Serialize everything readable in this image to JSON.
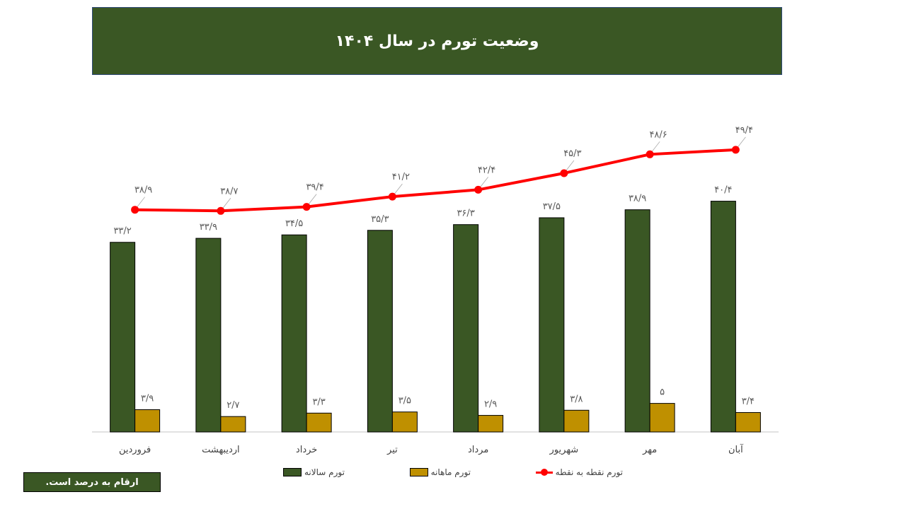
{
  "title": "وضعیت تورم در سال ۱۴۰۴",
  "note": "ارقام به درصد است.",
  "legend": {
    "annual": "تورم سالانه",
    "monthly": "تورم ماهانه",
    "point": "تورم نقطه به نقطه"
  },
  "colors": {
    "annual": "#3a5724",
    "monthly": "#bf9000",
    "point": "#ff0000",
    "banner": "#3a5724"
  },
  "chart_data": {
    "type": "bar",
    "title": "وضعیت تورم در سال ۱۴۰۴",
    "xlabel": "",
    "ylabel": "",
    "categories": [
      "فروردین",
      "اردیبهشت",
      "خرداد",
      "تیر",
      "مرداد",
      "شهریور",
      "مهر",
      "آبان"
    ],
    "series": [
      {
        "name": "تورم سالانه",
        "type": "bar",
        "values": [
          33.2,
          33.9,
          34.5,
          35.3,
          36.3,
          37.5,
          38.9,
          40.4
        ],
        "labels": [
          "۳۳/۲",
          "۳۳/۹",
          "۳۴/۵",
          "۳۵/۳",
          "۳۶/۳",
          "۳۷/۵",
          "۳۸/۹",
          "۴۰/۴"
        ]
      },
      {
        "name": "تورم ماهانه",
        "type": "bar",
        "values": [
          3.9,
          2.7,
          3.3,
          3.5,
          2.9,
          3.8,
          5,
          3.4
        ],
        "labels": [
          "۳/۹",
          "۲/۷",
          "۳/۳",
          "۳/۵",
          "۲/۹",
          "۳/۸",
          "۵",
          "۳/۴"
        ]
      },
      {
        "name": "تورم نقطه به نقطه",
        "type": "line",
        "values": [
          38.9,
          38.7,
          39.4,
          41.2,
          42.4,
          45.3,
          48.6,
          49.4
        ],
        "labels": [
          "۳۸/۹",
          "۳۸/۷",
          "۳۹/۴",
          "۴۱/۲",
          "۴۲/۴",
          "۴۵/۳",
          "۴۸/۶",
          "۴۹/۴"
        ]
      }
    ],
    "grid": false,
    "legend_position": "bottom"
  }
}
